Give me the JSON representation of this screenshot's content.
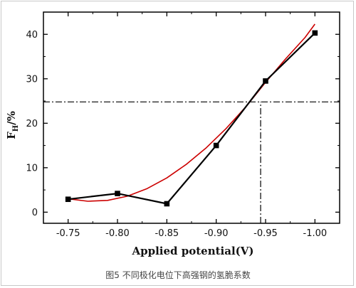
{
  "chart_data": {
    "type": "line",
    "xlabel": "Applied potential(V)",
    "ylabel": "F",
    "ylabel_sub": "H",
    "ylabel_suffix": "/%",
    "x_ticks": [
      "-0.75",
      "-0.80",
      "-0.85",
      "-0.90",
      "-0.95",
      "-1.00"
    ],
    "y_ticks": [
      "0",
      "10",
      "20",
      "30",
      "40"
    ],
    "xlim": [
      -0.725,
      -1.025
    ],
    "ylim": [
      -2.5,
      45
    ],
    "grid": false,
    "series": [
      {
        "kind": "measured",
        "color": "#000000",
        "marker": "square",
        "x": [
          -0.75,
          -0.8,
          -0.85,
          -0.9,
          -0.95,
          -1.0
        ],
        "y": [
          2.9,
          4.2,
          1.9,
          15.0,
          29.5,
          40.3
        ]
      },
      {
        "kind": "fit",
        "color": "#cc0000",
        "points": [
          [
            -0.75,
            3.0
          ],
          [
            -0.77,
            2.45
          ],
          [
            -0.79,
            2.65
          ],
          [
            -0.81,
            3.6
          ],
          [
            -0.83,
            5.3
          ],
          [
            -0.85,
            7.7
          ],
          [
            -0.87,
            10.8
          ],
          [
            -0.89,
            14.5
          ],
          [
            -0.91,
            18.8
          ],
          [
            -0.93,
            23.7
          ],
          [
            -0.95,
            29.2
          ],
          [
            -0.97,
            34.4
          ],
          [
            -0.99,
            39.3
          ],
          [
            -1.0,
            42.3
          ]
        ]
      }
    ],
    "reference_lines": [
      {
        "orientation": "horizontal",
        "y": 24.8,
        "from_x": -0.725,
        "to_x": -1.025,
        "style": "dash-dot"
      },
      {
        "orientation": "vertical",
        "x": -0.945,
        "from_y": -2.5,
        "to_y": 24.8,
        "style": "dash-dot"
      }
    ]
  },
  "caption": "图5 不同极化电位下高强钢的氢脆系数"
}
